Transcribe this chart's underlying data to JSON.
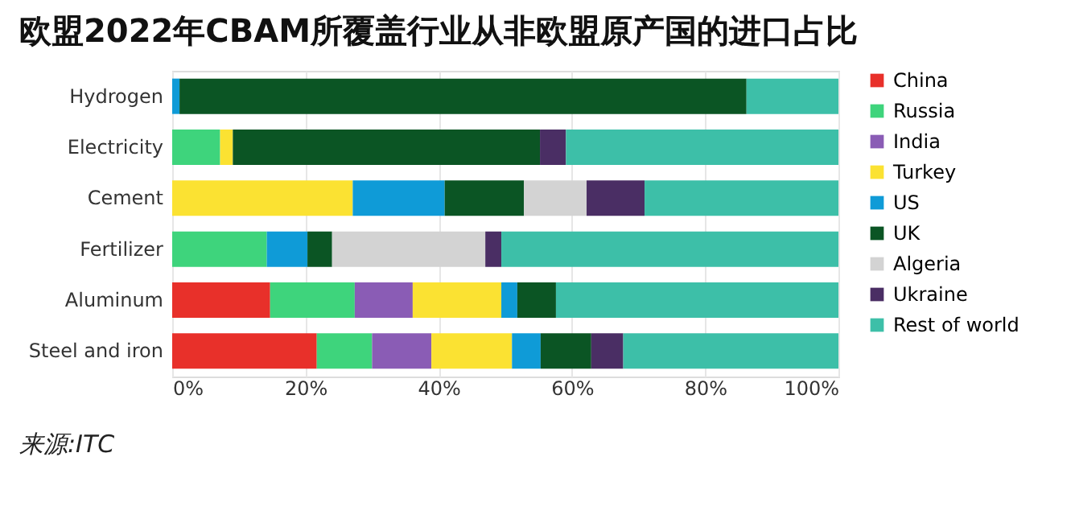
{
  "chart_data": {
    "type": "bar",
    "orientation": "horizontal",
    "stacked": true,
    "title": "欧盟2022年CBAM所覆盖行业从非欧盟原产国的进口占比",
    "categories": [
      "Hydrogen",
      "Electricity",
      "Cement",
      "Fertilizer",
      "Aluminum",
      "Steel and iron"
    ],
    "series": [
      {
        "name": "China",
        "color": "#e8302a",
        "values": [
          null,
          null,
          null,
          null,
          14.7,
          21.7
        ]
      },
      {
        "name": "Russia",
        "color": "#3ed47c",
        "values": [
          null,
          7.2,
          null,
          14.2,
          12.7,
          8.3
        ]
      },
      {
        "name": "India",
        "color": "#8a5cb5",
        "values": [
          null,
          null,
          null,
          null,
          8.7,
          8.9
        ]
      },
      {
        "name": "Turkey",
        "color": "#fbe232",
        "values": [
          null,
          1.9,
          27.1,
          null,
          13.3,
          12.1
        ]
      },
      {
        "name": "US",
        "color": "#0f9bd7",
        "values": [
          1.1,
          null,
          13.8,
          6.1,
          2.4,
          4.3
        ]
      },
      {
        "name": "UK",
        "color": "#0b5524",
        "values": [
          85.1,
          46.1,
          11.9,
          3.7,
          5.8,
          7.6
        ]
      },
      {
        "name": "Algeria",
        "color": "#d3d3d3",
        "values": [
          null,
          null,
          9.4,
          23.0,
          null,
          null
        ]
      },
      {
        "name": "Ukraine",
        "color": "#4a2e64",
        "values": [
          null,
          3.9,
          8.7,
          2.4,
          null,
          4.8
        ]
      },
      {
        "name": "Rest of world",
        "color": "#3dbfa8",
        "values": [
          13.8,
          40.9,
          29.1,
          50.6,
          42.4,
          32.3
        ]
      }
    ],
    "xlim": [
      0,
      100
    ],
    "xticks": [
      {
        "value": 0,
        "label": "0%"
      },
      {
        "value": 20,
        "label": "20%"
      },
      {
        "value": 40,
        "label": "40%"
      },
      {
        "value": 60,
        "label": "60%"
      },
      {
        "value": 80,
        "label": "80%"
      },
      {
        "value": 100,
        "label": "100%"
      }
    ],
    "grid": "x",
    "legend": "right",
    "annotations": [
      "来源:ITC"
    ]
  }
}
